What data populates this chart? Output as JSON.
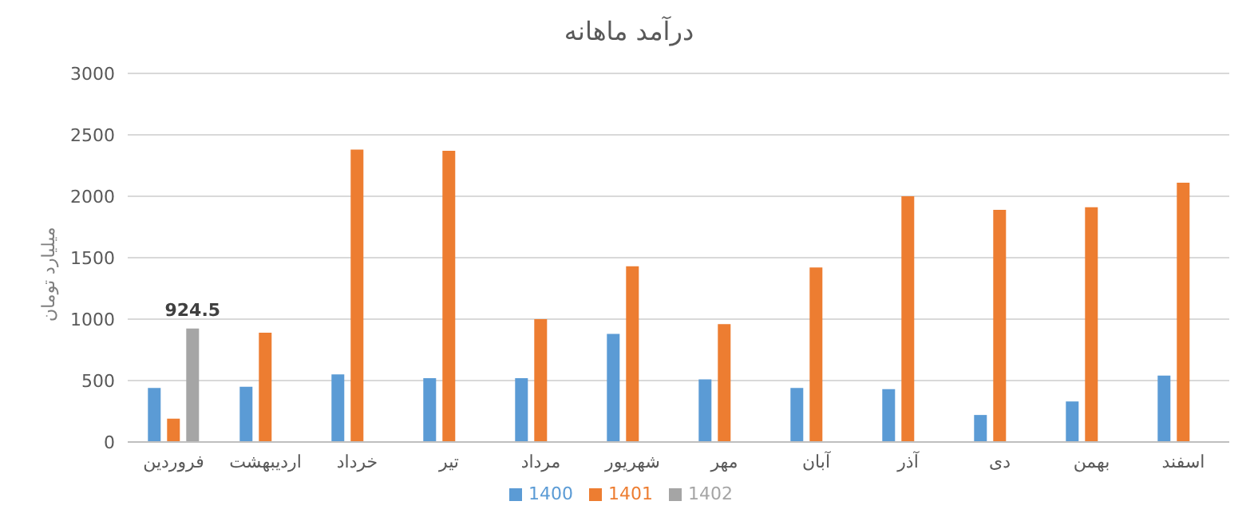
{
  "chart_data": {
    "type": "bar",
    "title": "درآمد ماهانه",
    "ylabel": "میلیارد تومان",
    "categories": [
      "فروردین",
      "اردیبهشت",
      "خرداد",
      "تیر",
      "مرداد",
      "شهریور",
      "مهر",
      "آبان",
      "آذر",
      "دی",
      "بهمن",
      "اسفند"
    ],
    "series": [
      {
        "name": "1400",
        "color": "#5b9bd5",
        "values": [
          440,
          450,
          550,
          520,
          520,
          880,
          510,
          440,
          430,
          220,
          330,
          540
        ]
      },
      {
        "name": "1401",
        "color": "#ed7d31",
        "values": [
          190,
          890,
          2380,
          2370,
          1000,
          1430,
          960,
          1420,
          2000,
          1890,
          1910,
          2110
        ]
      },
      {
        "name": "1402",
        "color": "#a5a5a5",
        "values": [
          924.5,
          null,
          null,
          null,
          null,
          null,
          null,
          null,
          null,
          null,
          null,
          null
        ],
        "value_labels": [
          "924.5",
          null,
          null,
          null,
          null,
          null,
          null,
          null,
          null,
          null,
          null,
          null
        ]
      }
    ],
    "ylim": [
      0,
      3000
    ],
    "yticks": [
      0,
      500,
      1000,
      1500,
      2000,
      2500,
      3000
    ],
    "grid": "y",
    "legend": "bottom"
  }
}
